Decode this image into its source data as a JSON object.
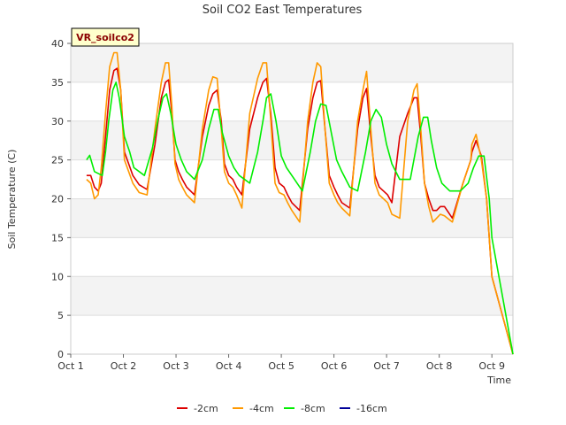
{
  "chart_data": {
    "type": "line",
    "title": "Soil CO2 East Temperatures",
    "xlabel": "Time",
    "ylabel": "Soil Temperature (C)",
    "station_tag": "VR_soilco2",
    "ylim": [
      0,
      40
    ],
    "xlim": [
      0,
      8.4
    ],
    "yticks": [
      0,
      5,
      10,
      15,
      20,
      25,
      30,
      35,
      40
    ],
    "xticks": [
      {
        "pos": 0,
        "label": "Oct 1"
      },
      {
        "pos": 1,
        "label": "Oct 2"
      },
      {
        "pos": 2,
        "label": "Oct 3"
      },
      {
        "pos": 3,
        "label": "Oct 4"
      },
      {
        "pos": 4,
        "label": "Oct 5"
      },
      {
        "pos": 5,
        "label": "Oct 6"
      },
      {
        "pos": 6,
        "label": "Oct 7"
      },
      {
        "pos": 7,
        "label": "Oct 8"
      },
      {
        "pos": 8,
        "label": "Oct 9"
      }
    ],
    "grid": true,
    "legend_placement": "bottom",
    "series": [
      {
        "name": "-2cm",
        "color": "#dd0000",
        "x": [
          0.3,
          0.38,
          0.45,
          0.52,
          0.58,
          0.66,
          0.74,
          0.82,
          0.88,
          0.95,
          1.02,
          1.1,
          1.18,
          1.3,
          1.45,
          1.6,
          1.72,
          1.8,
          1.86,
          1.92,
          1.98,
          2.05,
          2.12,
          2.2,
          2.35,
          2.5,
          2.62,
          2.7,
          2.78,
          2.86,
          2.92,
          3.0,
          3.08,
          3.15,
          3.25,
          3.4,
          3.55,
          3.65,
          3.72,
          3.8,
          3.88,
          3.96,
          4.05,
          4.12,
          4.2,
          4.35,
          4.5,
          4.6,
          4.68,
          4.75,
          4.83,
          4.91,
          5.0,
          5.07,
          5.15,
          5.3,
          5.45,
          5.55,
          5.62,
          5.7,
          5.78,
          5.86,
          5.94,
          6.02,
          6.1,
          6.25,
          6.4,
          6.52,
          6.58,
          6.65,
          6.72,
          6.8,
          6.88,
          6.95,
          7.02,
          7.1,
          7.25,
          7.45,
          7.6,
          7.62,
          7.7,
          7.8,
          7.9,
          7.95,
          8.0,
          8.4
        ],
        "y": [
          23,
          23,
          21.5,
          21,
          22,
          28,
          34,
          36.5,
          36.8,
          34,
          26,
          24.5,
          23,
          21.8,
          21.2,
          27,
          33,
          35,
          35.3,
          31,
          25,
          23.5,
          22.5,
          21.5,
          20.5,
          28,
          32,
          33.5,
          34,
          30,
          24.5,
          23,
          22.5,
          21.5,
          20.5,
          29,
          33,
          35,
          35.5,
          31,
          24,
          22,
          21.5,
          20.5,
          19.5,
          18.5,
          29,
          33,
          35,
          35.2,
          29,
          23,
          21.5,
          20.5,
          19.5,
          18.8,
          29,
          33,
          34.2,
          28,
          23,
          21.5,
          21,
          20.5,
          19.5,
          28,
          31,
          33,
          33,
          28,
          22,
          20,
          18.5,
          18.5,
          19,
          19,
          17.5,
          22,
          25,
          26,
          27.5,
          25.5,
          20,
          15,
          10,
          0
        ]
      },
      {
        "name": "-4cm",
        "color": "#ff9900",
        "x": [
          0.3,
          0.38,
          0.45,
          0.52,
          0.58,
          0.66,
          0.74,
          0.82,
          0.88,
          0.95,
          1.02,
          1.1,
          1.18,
          1.3,
          1.45,
          1.6,
          1.72,
          1.8,
          1.86,
          1.92,
          1.98,
          2.05,
          2.12,
          2.2,
          2.35,
          2.5,
          2.62,
          2.7,
          2.78,
          2.86,
          2.92,
          3.0,
          3.08,
          3.15,
          3.25,
          3.4,
          3.55,
          3.65,
          3.72,
          3.8,
          3.88,
          3.96,
          4.05,
          4.12,
          4.2,
          4.35,
          4.5,
          4.6,
          4.68,
          4.75,
          4.83,
          4.91,
          5.0,
          5.07,
          5.15,
          5.3,
          5.45,
          5.55,
          5.62,
          5.7,
          5.78,
          5.86,
          5.94,
          6.02,
          6.1,
          6.25,
          6.4,
          6.52,
          6.58,
          6.65,
          6.72,
          6.8,
          6.88,
          6.95,
          7.02,
          7.1,
          7.25,
          7.45,
          7.6,
          7.62,
          7.7,
          7.8,
          7.9,
          7.95,
          8.0,
          8.4
        ],
        "y": [
          22.5,
          22,
          20,
          20.5,
          24,
          31,
          37,
          38.8,
          38.8,
          34,
          25,
          23.5,
          22,
          20.8,
          20.5,
          29,
          35,
          37.5,
          37.5,
          32,
          24.5,
          22.5,
          21.5,
          20.5,
          19.5,
          29,
          34,
          35.7,
          35.5,
          29,
          23.5,
          22,
          21.5,
          20.5,
          18.8,
          31,
          35.5,
          37.5,
          37.5,
          30,
          22,
          20.8,
          20.5,
          19.5,
          18.5,
          17,
          30,
          35,
          37.5,
          37,
          29,
          22,
          20.5,
          19.5,
          18.8,
          17.8,
          30,
          34,
          36.4,
          29,
          22,
          20.5,
          20,
          19.5,
          18,
          17.5,
          30,
          34,
          34.8,
          29,
          22,
          19,
          17,
          17.5,
          18,
          17.8,
          17,
          22,
          25,
          27,
          28.3,
          25,
          20,
          15,
          10,
          0
        ]
      },
      {
        "name": "-8cm",
        "color": "#00ee00",
        "x": [
          0.3,
          0.36,
          0.45,
          0.6,
          0.66,
          0.72,
          0.8,
          0.86,
          0.92,
          1.02,
          1.12,
          1.2,
          1.4,
          1.55,
          1.65,
          1.75,
          1.82,
          1.9,
          2.0,
          2.1,
          2.2,
          2.35,
          2.5,
          2.62,
          2.72,
          2.8,
          2.88,
          3.0,
          3.1,
          3.2,
          3.4,
          3.55,
          3.65,
          3.72,
          3.8,
          3.9,
          4.0,
          4.1,
          4.25,
          4.4,
          4.55,
          4.65,
          4.75,
          4.85,
          4.95,
          5.05,
          5.15,
          5.3,
          5.45,
          5.6,
          5.7,
          5.8,
          5.9,
          6.0,
          6.1,
          6.25,
          6.45,
          6.6,
          6.7,
          6.78,
          6.85,
          6.95,
          7.05,
          7.2,
          7.4,
          7.55,
          7.65,
          7.75,
          7.85,
          7.95,
          8.0,
          8.4
        ],
        "y": [
          25,
          25.6,
          23.5,
          23,
          26,
          30,
          34,
          35,
          33,
          28,
          26,
          24,
          23,
          26.5,
          30,
          33,
          33.5,
          31,
          27,
          25,
          23.5,
          22.5,
          25,
          29,
          31.5,
          31.5,
          28.5,
          25.5,
          24,
          23,
          22,
          26,
          30,
          33,
          33.5,
          30,
          25.5,
          24,
          22.5,
          21,
          26,
          30,
          32.2,
          32,
          28.5,
          25,
          23.5,
          21.5,
          21,
          26,
          30,
          31.5,
          30.5,
          27,
          24.5,
          22.5,
          22.5,
          28,
          30.5,
          30.5,
          27.5,
          24,
          22,
          21,
          21,
          22,
          24,
          25.5,
          25.5,
          20,
          15,
          0
        ]
      },
      {
        "name": "-16cm",
        "color": "#000099",
        "x": [],
        "y": []
      }
    ]
  }
}
